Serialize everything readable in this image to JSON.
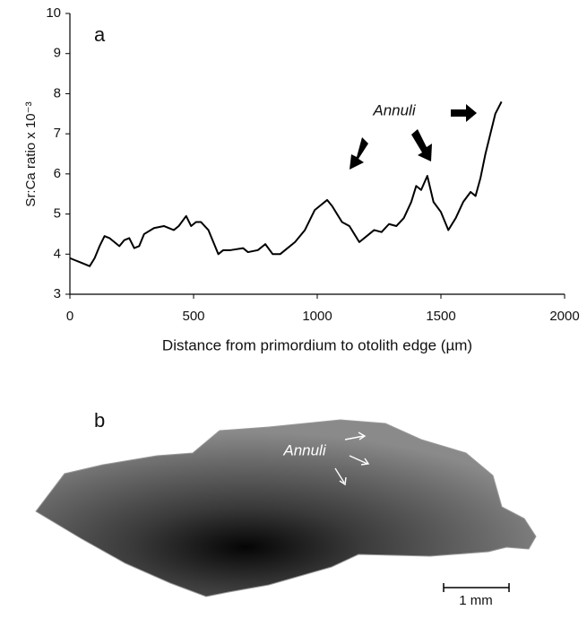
{
  "chart_data": {
    "type": "line",
    "panel_label": "a",
    "annotation": "Annuli",
    "xlabel": "Distance from primordium to otolith edge (µm)",
    "ylabel": "Sr:Ca ratio x 10⁻³",
    "x": [
      0,
      20,
      40,
      60,
      80,
      100,
      120,
      140,
      160,
      180,
      200,
      220,
      240,
      260,
      280,
      300,
      340,
      380,
      420,
      440,
      470,
      490,
      510,
      530,
      560,
      580,
      600,
      620,
      650,
      700,
      720,
      760,
      790,
      820,
      850,
      880,
      910,
      950,
      990,
      1010,
      1040,
      1060,
      1080,
      1100,
      1130,
      1150,
      1170,
      1200,
      1230,
      1260,
      1290,
      1320,
      1350,
      1380,
      1400,
      1420,
      1445,
      1470,
      1500,
      1530,
      1560,
      1590,
      1620,
      1640,
      1660,
      1680,
      1700,
      1720,
      1745
    ],
    "series": [
      {
        "color": "#000000",
        "values": [
          3.9,
          3.85,
          3.8,
          3.75,
          3.7,
          3.9,
          4.2,
          4.45,
          4.4,
          4.3,
          4.2,
          4.35,
          4.4,
          4.15,
          4.2,
          4.5,
          4.65,
          4.7,
          4.6,
          4.7,
          4.95,
          4.7,
          4.8,
          4.8,
          4.6,
          4.3,
          4.0,
          4.1,
          4.1,
          4.15,
          4.05,
          4.1,
          4.25,
          4.0,
          4.0,
          4.15,
          4.3,
          4.6,
          5.1,
          5.2,
          5.35,
          5.2,
          5.0,
          4.8,
          4.7,
          4.5,
          4.3,
          4.45,
          4.6,
          4.55,
          4.75,
          4.7,
          4.9,
          5.3,
          5.7,
          5.6,
          5.95,
          5.3,
          5.05,
          4.6,
          4.9,
          5.3,
          5.55,
          5.45,
          5.9,
          6.5,
          7.0,
          7.5,
          7.8
        ]
      }
    ],
    "xlim": [
      0,
      2000
    ],
    "xticks": [
      0,
      500,
      1000,
      1500,
      2000
    ],
    "ylim": [
      3,
      10
    ],
    "yticks": [
      3,
      4,
      5,
      6,
      7,
      8,
      9,
      10
    ],
    "grid": false
  },
  "panel_b": {
    "label": "b",
    "annotation": "Annuli",
    "scale_bar": "1 mm"
  }
}
